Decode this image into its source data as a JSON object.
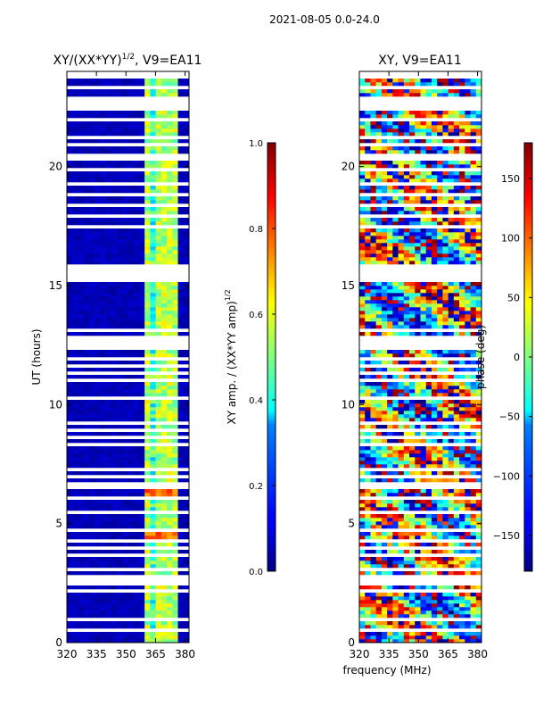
{
  "figure": {
    "suptitle": "2021-08-05 0.0-24.0",
    "xlabel_shared": "frequency (MHz)"
  },
  "chart_data": [
    {
      "type": "heatmap",
      "title": "XY/(XX*YY)",
      "title_exp": "1/2",
      "title_suffix": ", V9=EA11",
      "ylabel": "UT (hours)",
      "xlim": [
        320,
        382
      ],
      "ylim": [
        0,
        24
      ],
      "xticks": [
        320,
        335,
        350,
        365,
        380
      ],
      "yticks": [
        0,
        5,
        10,
        15,
        20
      ],
      "active_band_mhz": [
        360,
        377
      ],
      "bright_channels_mhz": [
        362,
        365.5,
        369,
        372.5,
        376
      ],
      "hot_rows_ut": [
        6.4,
        4.5
      ],
      "colorbar": {
        "label": "XY amp. / (XX*YY amp)",
        "label_exp": "1/2",
        "range": [
          0.0,
          1.0
        ],
        "ticks": [
          "0.0",
          "0.2",
          "0.4",
          "0.6",
          "0.8",
          "1.0"
        ],
        "colormap": "jet"
      }
    },
    {
      "type": "heatmap",
      "title": "XY, V9=EA11",
      "xlim": [
        320,
        382
      ],
      "ylim": [
        0,
        24
      ],
      "xticks": [
        320,
        335,
        350,
        365,
        380
      ],
      "yticks": [
        0,
        5,
        10,
        15,
        20
      ],
      "colorbar": {
        "label": "phase (deg)",
        "range": [
          -180,
          180
        ],
        "ticks": [
          "-150",
          "-100",
          "-50",
          "0",
          "50",
          "100",
          "150"
        ],
        "colormap": "jet"
      }
    }
  ],
  "flagged_ut_hours": [
    [
      0.45,
      0.55
    ],
    [
      0.95,
      1.02
    ],
    [
      1.35,
      1.42
    ],
    [
      1.75,
      1.85
    ],
    [
      2.15,
      2.22
    ],
    [
      2.45,
      2.8
    ],
    [
      3.0,
      3.08
    ],
    [
      3.3,
      3.36
    ],
    [
      3.6,
      3.7
    ],
    [
      3.95,
      4.0
    ],
    [
      4.2,
      4.28
    ],
    [
      4.7,
      4.76
    ],
    [
      5.05,
      5.12
    ],
    [
      5.45,
      5.5
    ],
    [
      5.95,
      6.2
    ],
    [
      6.5,
      6.7
    ],
    [
      6.9,
      7.0
    ],
    [
      7.25,
      7.3
    ],
    [
      7.6,
      7.68
    ],
    [
      7.9,
      8.0
    ],
    [
      8.3,
      8.36
    ],
    [
      8.6,
      8.66
    ],
    [
      8.9,
      8.96
    ],
    [
      9.2,
      9.3
    ],
    [
      9.55,
      9.6
    ],
    [
      9.85,
      9.92
    ],
    [
      10.25,
      10.32
    ],
    [
      10.65,
      10.7
    ],
    [
      11.0,
      11.05
    ],
    [
      11.3,
      11.35
    ],
    [
      11.6,
      11.68
    ],
    [
      11.9,
      12.05
    ],
    [
      12.35,
      12.85
    ],
    [
      13.1,
      13.15
    ],
    [
      13.45,
      13.5
    ],
    [
      13.75,
      13.8
    ],
    [
      14.1,
      14.15
    ],
    [
      14.4,
      14.45
    ],
    [
      14.8,
      14.9
    ],
    [
      15.2,
      15.95
    ],
    [
      16.3,
      16.35
    ],
    [
      16.6,
      16.65
    ],
    [
      16.95,
      17.0
    ],
    [
      17.45,
      17.5
    ],
    [
      17.9,
      17.95
    ],
    [
      18.35,
      18.4
    ],
    [
      18.8,
      18.85
    ],
    [
      19.25,
      19.3
    ],
    [
      19.85,
      19.9
    ],
    [
      20.2,
      20.55
    ],
    [
      20.9,
      20.95
    ],
    [
      21.2,
      21.25
    ],
    [
      21.45,
      21.5
    ],
    [
      21.7,
      21.75
    ],
    [
      21.95,
      22.05
    ],
    [
      22.3,
      22.95
    ],
    [
      23.3,
      23.4
    ],
    [
      23.75,
      24.0
    ]
  ]
}
